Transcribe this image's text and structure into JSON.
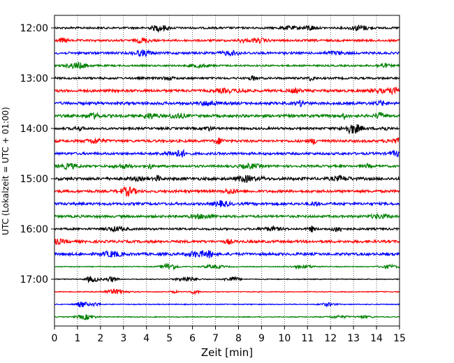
{
  "chart_data": {
    "type": "line",
    "title": "",
    "xlabel": "Zeit  [min]",
    "ylabel": "UTC (Lokalzeit = UTC + 01:00)",
    "xlim": [
      0,
      15
    ],
    "x_ticks": [
      "0",
      "1",
      "2",
      "3",
      "4",
      "5",
      "6",
      "7",
      "8",
      "9",
      "10",
      "11",
      "12",
      "13",
      "14",
      "15"
    ],
    "y_tick_labels": [
      "12:00",
      "13:00",
      "14:00",
      "15:00",
      "16:00",
      "17:00"
    ],
    "grid": "vertical dotted",
    "colors": [
      "#000000",
      "#ff0000",
      "#0000ff",
      "#008000"
    ],
    "traces": [
      {
        "start": "12:00",
        "color": "#000000"
      },
      {
        "start": "12:15",
        "color": "#ff0000"
      },
      {
        "start": "12:30",
        "color": "#0000ff"
      },
      {
        "start": "12:45",
        "color": "#008000"
      },
      {
        "start": "13:00",
        "color": "#000000"
      },
      {
        "start": "13:15",
        "color": "#ff0000"
      },
      {
        "start": "13:30",
        "color": "#0000ff"
      },
      {
        "start": "13:45",
        "color": "#008000"
      },
      {
        "start": "14:00",
        "color": "#000000"
      },
      {
        "start": "14:15",
        "color": "#ff0000"
      },
      {
        "start": "14:30",
        "color": "#0000ff"
      },
      {
        "start": "14:45",
        "color": "#008000"
      },
      {
        "start": "15:00",
        "color": "#000000"
      },
      {
        "start": "15:15",
        "color": "#ff0000"
      },
      {
        "start": "15:30",
        "color": "#0000ff"
      },
      {
        "start": "15:45",
        "color": "#008000"
      },
      {
        "start": "16:00",
        "color": "#000000"
      },
      {
        "start": "16:15",
        "color": "#ff0000"
      },
      {
        "start": "16:30",
        "color": "#0000ff"
      },
      {
        "start": "16:45",
        "color": "#008000"
      },
      {
        "start": "17:00",
        "color": "#000000"
      },
      {
        "start": "17:15",
        "color": "#ff0000"
      },
      {
        "start": "17:30",
        "color": "#0000ff"
      },
      {
        "start": "17:45",
        "color": "#008000"
      }
    ]
  }
}
